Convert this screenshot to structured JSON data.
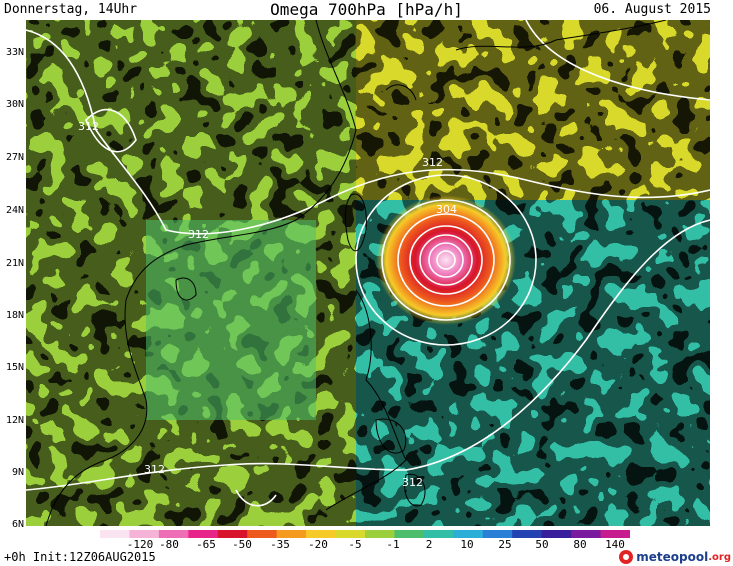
{
  "header": {
    "left": "Donnerstag, 14Uhr",
    "title": "Omega 700hPa [hPa/h]",
    "right": "06. August 2015"
  },
  "lat_labels": [
    "33N",
    "30N",
    "27N",
    "24N",
    "21N",
    "18N",
    "15N",
    "12N",
    "9N",
    "6N"
  ],
  "contour_labels": [
    "312",
    "312",
    "312",
    "304",
    "312",
    "312"
  ],
  "colorbar": {
    "labels": [
      "-120",
      "-80",
      "-65",
      "-50",
      "-35",
      "-20",
      "-5",
      "-1",
      "2",
      "10",
      "25",
      "50",
      "80",
      "140"
    ],
    "colors": [
      "#fbe4f2",
      "#f5b3d8",
      "#ee6fb5",
      "#e8238a",
      "#d7142b",
      "#ee5a1d",
      "#f59c20",
      "#f6cb28",
      "#d8d92a",
      "#9bcf3c",
      "#4dbf6c",
      "#33bea6",
      "#2baed8",
      "#2a7fd6",
      "#2443b3",
      "#3a1f9c",
      "#7a1a9f",
      "#c71c8f"
    ]
  },
  "footer": {
    "init": "+0h Init:12Z06AUG2015",
    "brand": "meteopool",
    "brand_suffix": ".org"
  }
}
